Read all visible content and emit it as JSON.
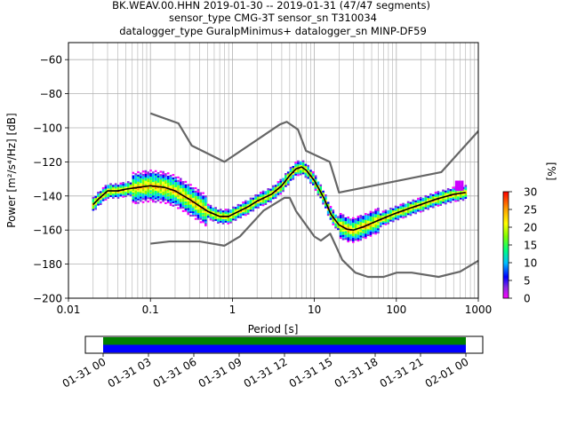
{
  "title": {
    "line1": "BK.WEAV.00.HHN   2019-01-30 -- 2019-01-31  (47/47 segments)",
    "line2": "sensor_type CMG-3T sensor_sn T310034",
    "line3": "datalogger_type GuralpMinimus+ datalogger_sn MINP-DF59"
  },
  "chart_data": [
    {
      "type": "heatmap",
      "title": "BK.WEAV.00.HHN   2019-01-30 -- 2019-01-31  (47/47 segments)",
      "xlabel": "Period [s]",
      "ylabel": "Power [m²/s⁴/Hz] [dB]",
      "xscale": "log",
      "xlim": [
        0.01,
        1000
      ],
      "ylim": [
        -200,
        -50
      ],
      "xticks": [
        0.01,
        0.1,
        1,
        10,
        100,
        1000
      ],
      "xtick_labels": [
        "0.01",
        "0.1",
        "1",
        "10",
        "100",
        "1000"
      ],
      "yticks": [
        -60,
        -80,
        -100,
        -120,
        -140,
        -160,
        -180,
        -200
      ],
      "ytick_labels": [
        "−60",
        "−80",
        "−100",
        "−120",
        "−140",
        "−160",
        "−180",
        "−200"
      ],
      "grid": true,
      "colorbar": {
        "label": "[%]",
        "range": [
          0,
          30
        ],
        "ticks": [
          0,
          5,
          10,
          15,
          20,
          25,
          30
        ],
        "tick_labels": [
          "0",
          "5",
          "10",
          "15",
          "20",
          "25",
          "30"
        ]
      },
      "series": [
        {
          "role": "noise-model-high",
          "color": "#666666",
          "x": [
            0.1,
            0.22,
            0.32,
            0.8,
            3.8,
            4.6,
            6.3,
            7.9,
            15.4,
            20,
            354,
            10000
          ],
          "y": [
            -91.5,
            -97.4,
            -110.5,
            -120,
            -98,
            -96.5,
            -101,
            -113.5,
            -120,
            -138,
            -126,
            -48.5
          ]
        },
        {
          "role": "noise-model-low",
          "color": "#666666",
          "x": [
            0.1,
            0.17,
            0.4,
            0.8,
            1.24,
            2.4,
            4.3,
            5,
            6,
            10,
            12,
            15.6,
            21.9,
            31.6,
            45,
            70,
            101,
            154,
            328,
            600,
            1000
          ],
          "y": [
            -168,
            -166.7,
            -166.7,
            -169.2,
            -163.7,
            -148.6,
            -141.1,
            -141.1,
            -149,
            -163.8,
            -166.2,
            -162.1,
            -177.5,
            -185,
            -187.5,
            -187.5,
            -185,
            -185,
            -187.5,
            -184.4,
            -178
          ]
        },
        {
          "role": "mode",
          "color": "#000000",
          "x": [
            0.02,
            0.023,
            0.03,
            0.04,
            0.05,
            0.07,
            0.1,
            0.15,
            0.2,
            0.3,
            0.4,
            0.5,
            0.7,
            0.9,
            1.2,
            1.6,
            2,
            3,
            4,
            5,
            6,
            7,
            8,
            10,
            13,
            16,
            20,
            25,
            30,
            40,
            50,
            70,
            100,
            150,
            200,
            300,
            500,
            700
          ],
          "y": [
            -145,
            -142,
            -137,
            -137,
            -136,
            -135,
            -134,
            -135,
            -137,
            -142,
            -146,
            -149,
            -152,
            -152,
            -149,
            -146,
            -143,
            -139,
            -134,
            -128,
            -124,
            -123,
            -125,
            -131,
            -141,
            -151,
            -157,
            -159.5,
            -160,
            -158,
            -156,
            -153,
            -150,
            -147,
            -145,
            -142,
            -139,
            -138
          ]
        }
      ]
    },
    {
      "type": "bar",
      "role": "data-availability",
      "x_tick_labels": [
        "01-31 00",
        "01-31 03",
        "01-31 06",
        "01-31 09",
        "01-31 12",
        "01-31 15",
        "01-31 18",
        "01-31 21",
        "02-01 00"
      ],
      "bands": [
        {
          "color": "#008000",
          "start": "01-31 00",
          "end": "02-01 00"
        },
        {
          "color": "#0000ff",
          "start": "01-31 00",
          "end": "02-01 00"
        }
      ]
    }
  ]
}
